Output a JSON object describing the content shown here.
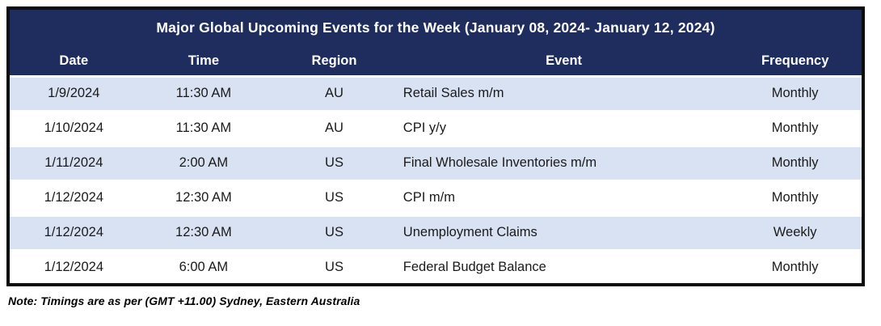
{
  "table": {
    "title": "Major Global Upcoming Events for the Week (January 08, 2024- January 12, 2024)",
    "columns": {
      "date": "Date",
      "time": "Time",
      "region": "Region",
      "event": "Event",
      "frequency": "Frequency"
    },
    "rows": [
      {
        "date": "1/9/2024",
        "time": "11:30 AM",
        "region": "AU",
        "event": "Retail Sales m/m",
        "frequency": "Monthly"
      },
      {
        "date": "1/10/2024",
        "time": "11:30 AM",
        "region": "AU",
        "event": "CPI y/y",
        "frequency": "Monthly"
      },
      {
        "date": "1/11/2024",
        "time": "2:00 AM",
        "region": "US",
        "event": "Final Wholesale Inventories m/m",
        "frequency": "Monthly"
      },
      {
        "date": "1/12/2024",
        "time": "12:30 AM",
        "region": "US",
        "event": "CPI m/m",
        "frequency": "Monthly"
      },
      {
        "date": "1/12/2024",
        "time": "12:30 AM",
        "region": "US",
        "event": "Unemployment Claims",
        "frequency": "Weekly"
      },
      {
        "date": "1/12/2024",
        "time": "6:00 AM",
        "region": "US",
        "event": "Federal Budget Balance",
        "frequency": "Monthly"
      }
    ]
  },
  "note": "Note: Timings are as per (GMT +11.00) Sydney, Eastern Australia",
  "colors": {
    "header_bg": "#1f2d5e",
    "band_bg": "#d9e2f3",
    "border": "#0d0d0d",
    "header_text": "#ffffff",
    "cell_text": "#1a1a1a"
  }
}
